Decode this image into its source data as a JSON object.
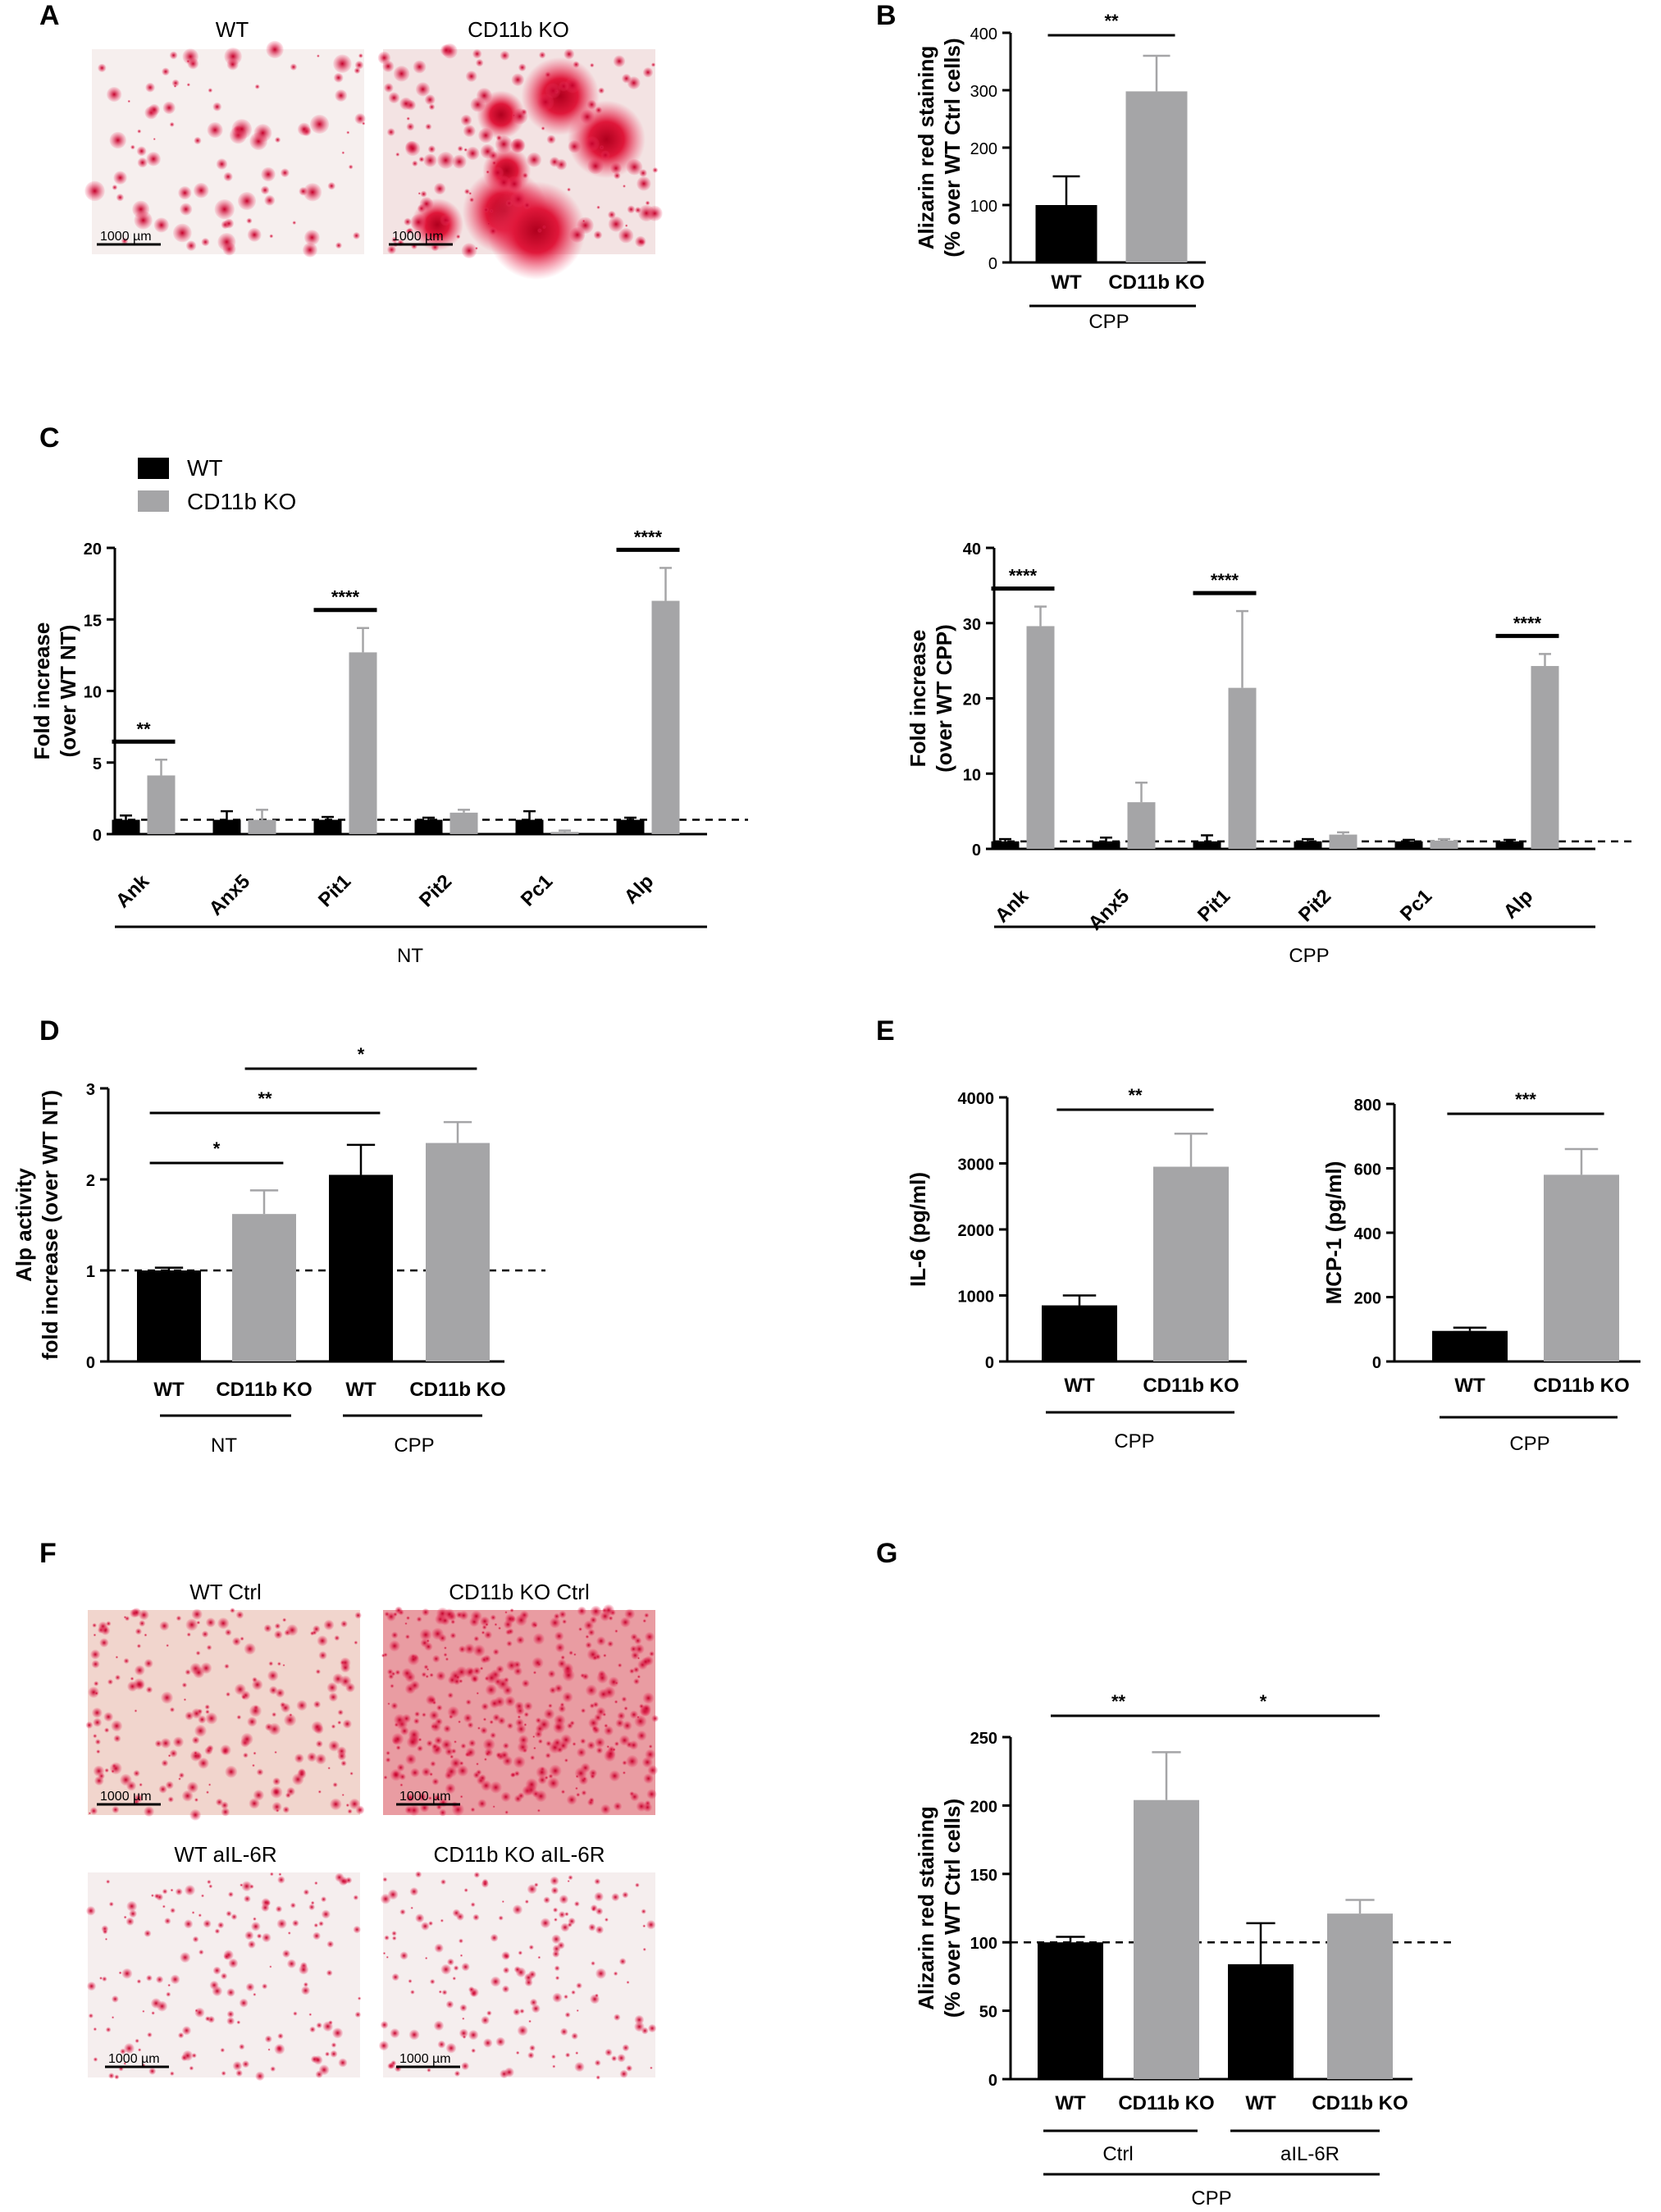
{
  "panel_labels": [
    "A",
    "B",
    "C",
    "D",
    "E",
    "F",
    "G"
  ],
  "colors": {
    "wt": "#000000",
    "ko": "#a5a5a7",
    "axis": "#000000"
  },
  "legend": [
    {
      "label": "WT",
      "color": "#000000"
    },
    {
      "label": "CD11b KO",
      "color": "#a5a5a7"
    }
  ],
  "micrographs": [
    {
      "label": "WT",
      "scale_label": "1000 µm",
      "style": "sparse"
    },
    {
      "label": "CD11b KO",
      "scale_label": "1000 µm",
      "style": "dense"
    },
    {
      "label": "WT Ctrl",
      "scale_label": "1000 µm",
      "style": "medium"
    },
    {
      "label": "CD11b KO Ctrl",
      "scale_label": "1000 µm",
      "style": "heavy"
    },
    {
      "label": "WT aIL-6R",
      "scale_label": "1000 µm",
      "style": "dots"
    },
    {
      "label": "CD11b KO aIL-6R",
      "scale_label": "1000 µm",
      "style": "dots"
    }
  ],
  "chart_data": [
    {
      "panel": "B",
      "type": "bar",
      "ylabel_lines": [
        "Alizarin red staining",
        "(% over WT Ctrl cells)"
      ],
      "ylim": [
        0,
        400
      ],
      "yticks": [
        0,
        100,
        200,
        300,
        400
      ],
      "categories": [
        "WT",
        "CD11b KO"
      ],
      "values": [
        100,
        298
      ],
      "errors": [
        50,
        62
      ],
      "colors": [
        "#000000",
        "#a5a5a7"
      ],
      "groups": [
        {
          "label": "CPP",
          "from": 0,
          "to": 1
        }
      ],
      "significance": [
        {
          "from": 0,
          "to": 1,
          "label": "**"
        }
      ]
    },
    {
      "panel": "C-NT",
      "type": "bar",
      "ylabel_lines": [
        "Fold increase",
        "(over WT NT)"
      ],
      "ylim": [
        0,
        20
      ],
      "yticks": [
        0,
        5,
        10,
        15,
        20
      ],
      "categories": [
        "Ank",
        "Anx5",
        "Pit1",
        "Pit2",
        "Pc1",
        "Alp"
      ],
      "series": [
        {
          "name": "WT",
          "values": [
            1.0,
            1.0,
            1.0,
            1.0,
            1.0,
            1.0
          ],
          "errors": [
            0.3,
            0.6,
            0.2,
            0.15,
            0.6,
            0.15
          ]
        },
        {
          "name": "CD11b KO",
          "values": [
            4.1,
            1.0,
            12.7,
            1.5,
            0.15,
            16.3
          ],
          "errors": [
            1.1,
            0.7,
            1.7,
            0.2,
            0.1,
            2.3
          ]
        }
      ],
      "reference_line": 1,
      "groups": [
        {
          "label": "NT",
          "from": 0,
          "to": 5
        }
      ],
      "significance": [
        {
          "category": 0,
          "label": "**"
        },
        {
          "category": 2,
          "label": "****"
        },
        {
          "category": 5,
          "label": "****"
        }
      ]
    },
    {
      "panel": "C-CPP",
      "type": "bar",
      "ylabel_lines": [
        "Fold increase",
        "(over WT CPP)"
      ],
      "ylim": [
        0,
        40
      ],
      "yticks": [
        0,
        10,
        20,
        30,
        40
      ],
      "categories": [
        "Ank",
        "Anx5",
        "Pit1",
        "Pit2",
        "Pc1",
        "Alp"
      ],
      "series": [
        {
          "name": "WT",
          "values": [
            1.0,
            1.0,
            1.0,
            1.0,
            1.0,
            1.0
          ],
          "errors": [
            0.3,
            0.5,
            0.8,
            0.3,
            0.2,
            0.2
          ]
        },
        {
          "name": "CD11b KO",
          "values": [
            29.6,
            6.2,
            21.4,
            1.9,
            1.1,
            24.3
          ],
          "errors": [
            2.6,
            2.6,
            10.2,
            0.3,
            0.2,
            1.6
          ]
        }
      ],
      "reference_line": 1,
      "groups": [
        {
          "label": "CPP",
          "from": 0,
          "to": 5
        }
      ],
      "significance": [
        {
          "category": 0,
          "label": "****"
        },
        {
          "category": 2,
          "label": "****"
        },
        {
          "category": 5,
          "label": "****"
        }
      ]
    },
    {
      "panel": "D",
      "type": "bar",
      "ylabel_lines": [
        "Alp activity",
        "fold increase (over WT NT)"
      ],
      "ylim": [
        0,
        3
      ],
      "yticks": [
        0,
        1,
        2,
        3
      ],
      "categories": [
        "WT",
        "CD11b KO",
        "WT",
        "CD11b KO"
      ],
      "values": [
        1.0,
        1.62,
        2.05,
        2.4
      ],
      "errors": [
        0.03,
        0.26,
        0.33,
        0.23
      ],
      "colors": [
        "#000000",
        "#a5a5a7",
        "#000000",
        "#a5a5a7"
      ],
      "reference_line": 1,
      "groups": [
        {
          "label": "NT",
          "from": 0,
          "to": 1
        },
        {
          "label": "CPP",
          "from": 2,
          "to": 3
        }
      ],
      "significance": [
        {
          "from": 0,
          "to": 1,
          "label": "*"
        },
        {
          "from": 0,
          "to": 2,
          "label": "**"
        },
        {
          "from": 1,
          "to": 3,
          "label": "*"
        }
      ]
    },
    {
      "panel": "E-IL6",
      "type": "bar",
      "ylabel_lines": [
        "IL-6 (pg/ml)"
      ],
      "ylim": [
        0,
        4000
      ],
      "yticks": [
        0,
        1000,
        2000,
        3000,
        4000
      ],
      "categories": [
        "WT",
        "CD11b KO"
      ],
      "values": [
        850,
        2950
      ],
      "errors": [
        150,
        500
      ],
      "colors": [
        "#000000",
        "#a5a5a7"
      ],
      "groups": [
        {
          "label": "CPP",
          "from": 0,
          "to": 1
        }
      ],
      "significance": [
        {
          "from": 0,
          "to": 1,
          "label": "**"
        }
      ]
    },
    {
      "panel": "E-MCP1",
      "type": "bar",
      "ylabel_lines": [
        "MCP-1 (pg/ml)"
      ],
      "ylim": [
        0,
        800
      ],
      "yticks": [
        0,
        200,
        400,
        600,
        800
      ],
      "categories": [
        "WT",
        "CD11b KO"
      ],
      "values": [
        95,
        580
      ],
      "errors": [
        10,
        80
      ],
      "colors": [
        "#000000",
        "#a5a5a7"
      ],
      "groups": [
        {
          "label": "CPP",
          "from": 0,
          "to": 1
        }
      ],
      "significance": [
        {
          "from": 0,
          "to": 1,
          "label": "***"
        }
      ]
    },
    {
      "panel": "G",
      "type": "bar",
      "ylabel_lines": [
        "Alizarin red staining",
        "(% over WT Ctrl cells)"
      ],
      "ylim": [
        0,
        250
      ],
      "yticks": [
        0,
        50,
        100,
        150,
        200,
        250
      ],
      "categories": [
        "WT",
        "CD11b KO",
        "WT",
        "CD11b KO"
      ],
      "values": [
        100,
        204,
        84,
        121
      ],
      "errors": [
        4,
        35,
        30,
        10
      ],
      "colors": [
        "#000000",
        "#a5a5a7",
        "#000000",
        "#a5a5a7"
      ],
      "reference_line": 100,
      "groups": [
        {
          "label": "Ctrl",
          "from": 0,
          "to": 1
        },
        {
          "label": "aIL-6R",
          "from": 2,
          "to": 3
        }
      ],
      "outer_group": "CPP",
      "significance": [
        {
          "from": 0,
          "to": 1,
          "label": "**"
        },
        {
          "from": 1,
          "to": 3,
          "label": "*"
        }
      ]
    }
  ]
}
